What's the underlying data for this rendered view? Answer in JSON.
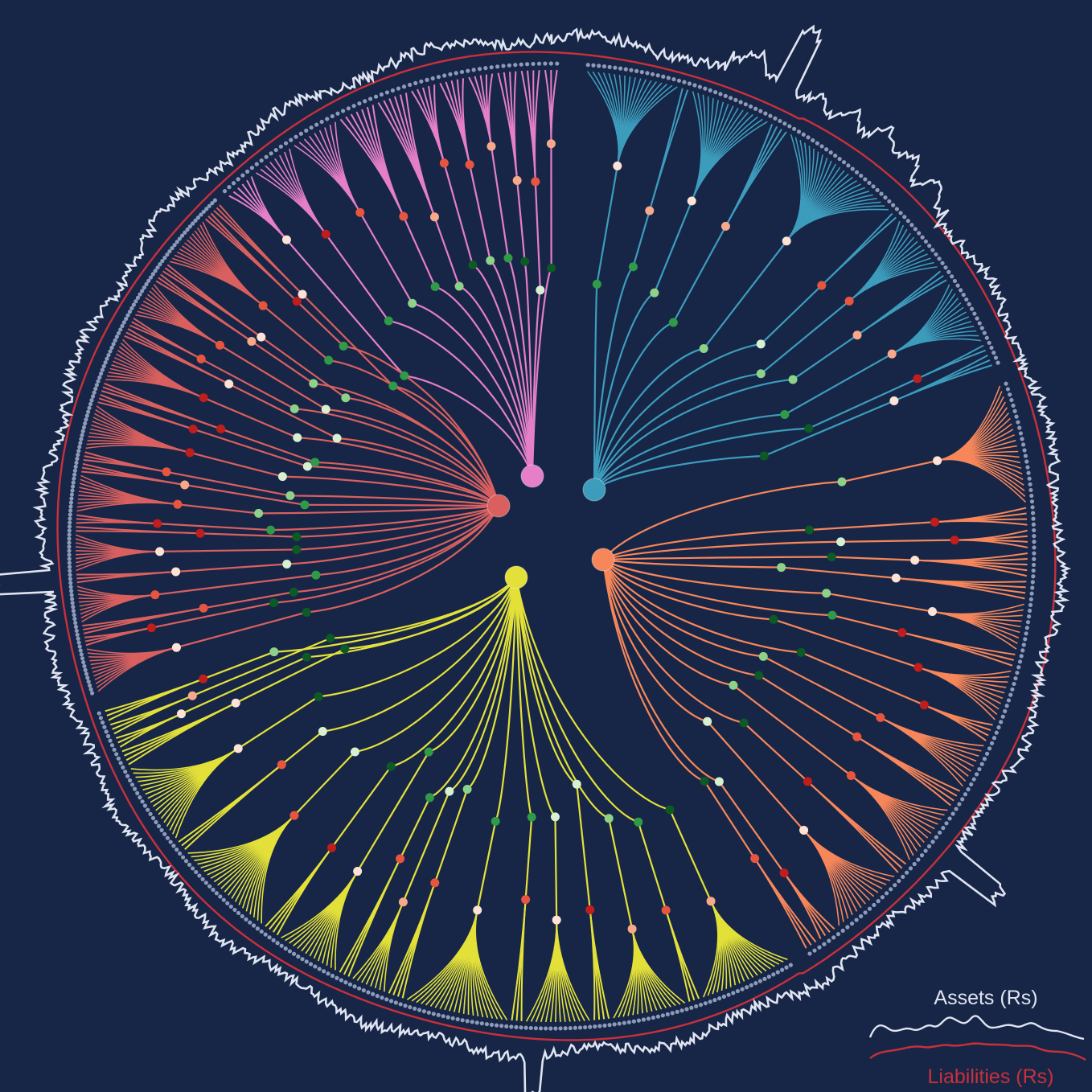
{
  "legend": {
    "assets_label": "Assets (Rs)",
    "liabilities_label": "Liabilities (Rs)"
  },
  "colors": {
    "background": "#172647",
    "assets": "#dfe4f0",
    "liabilities": "#c9303a",
    "leaf_dot": "#8d9bb8",
    "groups": [
      "#e47fc8",
      "#3d9cbc",
      "#f7875a",
      "#e3e139",
      "#d9605f"
    ],
    "node_scale": [
      "#0c5a25",
      "#2f9a47",
      "#8ed28a",
      "#d7f0d2",
      "#fde3d6",
      "#f8a98a",
      "#e8553f",
      "#c01d1d"
    ]
  },
  "tree": {
    "groups": [
      {
        "name": "pink",
        "branches": [
          6,
          8,
          9,
          7,
          6,
          5,
          5,
          5,
          4,
          4,
          3
        ]
      },
      {
        "name": "teal",
        "branches": [
          18,
          2,
          16,
          4,
          24,
          2,
          12,
          3,
          13,
          2,
          3
        ]
      },
      {
        "name": "orange",
        "branches": [
          22,
          4,
          4,
          5,
          4,
          9,
          3,
          10,
          4,
          9,
          4,
          12,
          3,
          14,
          4,
          3
        ]
      },
      {
        "name": "yellow",
        "branches": [
          20,
          3,
          16,
          4,
          14,
          3,
          22,
          4,
          8,
          3,
          14,
          4,
          22,
          3,
          18,
          4,
          3,
          3,
          3
        ]
      },
      {
        "name": "red",
        "branches": [
          12,
          3,
          3,
          10,
          3,
          10,
          2,
          3,
          10,
          3,
          3,
          12,
          3,
          3,
          12,
          3,
          3,
          10,
          3,
          3,
          14,
          3,
          3
        ]
      }
    ]
  }
}
